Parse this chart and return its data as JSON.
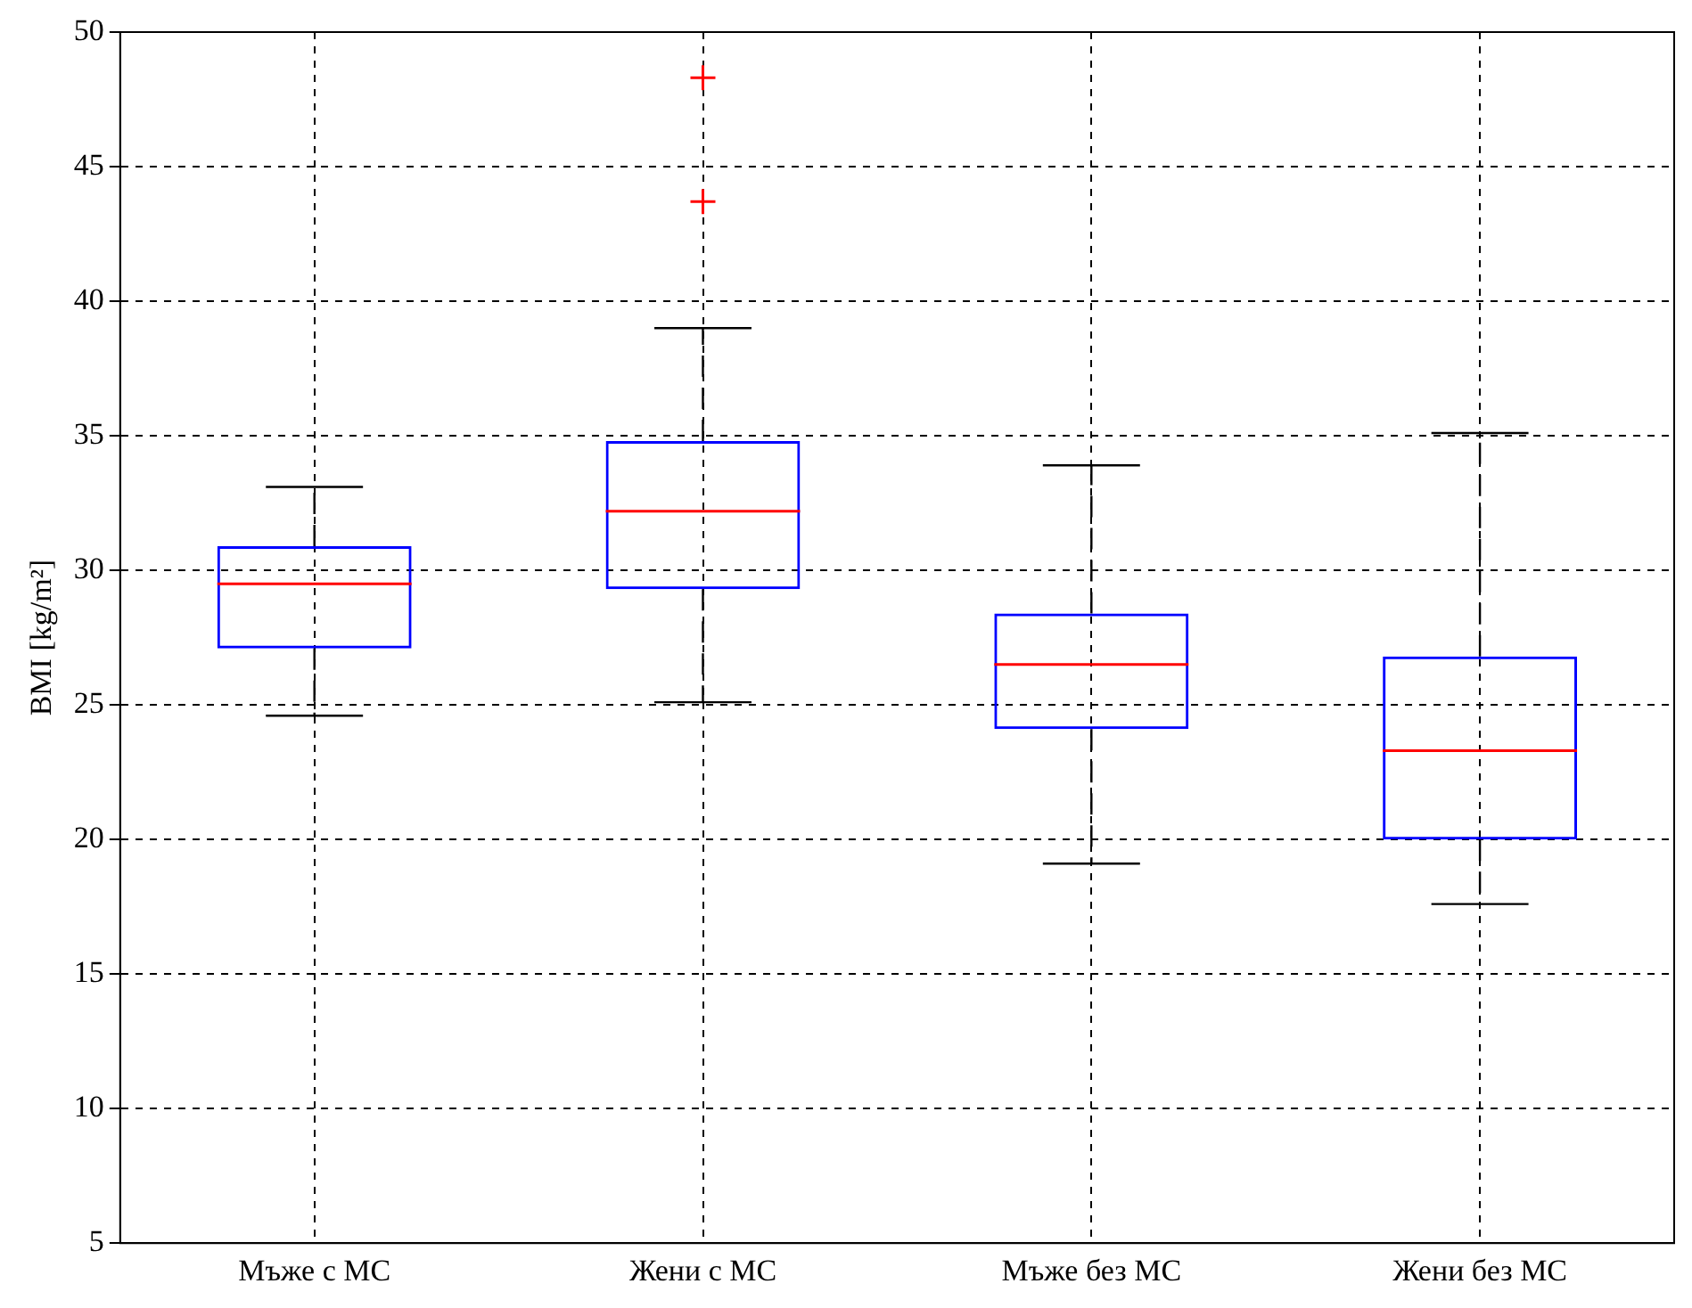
{
  "chart_data": {
    "type": "box",
    "ylabel": "BMI [kg/m²]",
    "categories": [
      "Мъже с МС",
      "Жени с МС",
      "Мъже без МС",
      "Жени без МС"
    ],
    "boxes": [
      {
        "low": 24.6,
        "q1": 27.1,
        "median": 29.5,
        "q3": 30.9,
        "high": 33.1
      },
      {
        "low": 25.1,
        "q1": 29.3,
        "median": 32.2,
        "q3": 34.8,
        "high": 39,
        "outliers": [
          43.7,
          48.3
        ]
      },
      {
        "low": 19.1,
        "q1": 24.1,
        "median": 26.5,
        "q3": 28.4,
        "high": 33.9
      },
      {
        "low": 17.6,
        "q1": 20,
        "median": 23.3,
        "q3": 26.8,
        "high": 35.1
      }
    ],
    "color": "#0000ff",
    "marker": "cross",
    "ylim": [
      5,
      50
    ],
    "yticks": [
      5,
      10,
      15,
      20,
      25,
      30,
      35,
      40,
      45,
      50
    ],
    "grid": true,
    "legend": false
  }
}
